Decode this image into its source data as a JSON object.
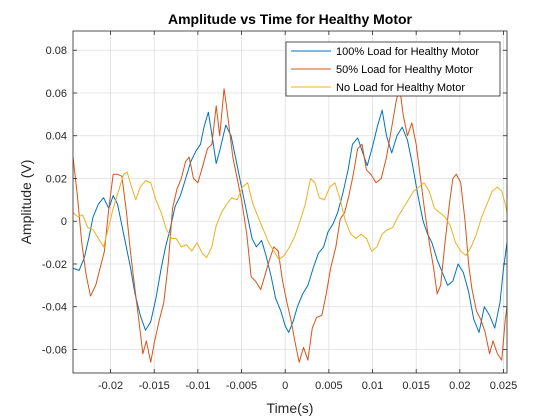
{
  "chart_data": {
    "type": "line",
    "title": "Amplitude vs Time for Healthy Motor",
    "xlabel": "Time(s)",
    "ylabel": "Amplitude (V)",
    "xlim": [
      -0.0243,
      0.0254
    ],
    "ylim": [
      -0.071,
      0.089
    ],
    "xticks": [
      -0.02,
      -0.015,
      -0.01,
      -0.005,
      0,
      0.005,
      0.01,
      0.015,
      0.02,
      0.025
    ],
    "xtick_labels": [
      "-0.02",
      "-0.015",
      "-0.01",
      "-0.005",
      "0",
      "0.005",
      "0.01",
      "0.015",
      "0.02",
      "0.025"
    ],
    "yticks": [
      -0.06,
      -0.04,
      -0.02,
      0,
      0.02,
      0.04,
      0.06,
      0.08
    ],
    "ytick_labels": [
      "-0.06",
      "-0.04",
      "-0.02",
      "0",
      "0.02",
      "0.04",
      "0.06",
      "0.08"
    ],
    "grid": true,
    "legend_position": "top-right",
    "series": [
      {
        "name": "100% Load for Healthy Motor",
        "color": "#0072BD",
        "points": [
          [
            -0.0243,
            -0.022
          ],
          [
            -0.0236,
            -0.023
          ],
          [
            -0.023,
            -0.017
          ],
          [
            -0.0225,
            -0.008
          ],
          [
            -0.022,
            0.002
          ],
          [
            -0.0214,
            0.008
          ],
          [
            -0.0208,
            0.011
          ],
          [
            -0.0202,
            0.006
          ],
          [
            -0.0197,
            0.012
          ],
          [
            -0.0192,
            0.008
          ],
          [
            -0.0186,
            -0.004
          ],
          [
            -0.0182,
            -0.012
          ],
          [
            -0.0177,
            -0.022
          ],
          [
            -0.0172,
            -0.034
          ],
          [
            -0.0166,
            -0.044
          ],
          [
            -0.016,
            -0.051
          ],
          [
            -0.0154,
            -0.047
          ],
          [
            -0.0148,
            -0.036
          ],
          [
            -0.0142,
            -0.022
          ],
          [
            -0.0137,
            -0.012
          ],
          [
            -0.0132,
            -0.004
          ],
          [
            -0.0126,
            0.007
          ],
          [
            -0.012,
            0.012
          ],
          [
            -0.0114,
            0.02
          ],
          [
            -0.0108,
            0.028
          ],
          [
            -0.0102,
            0.033
          ],
          [
            -0.0097,
            0.036
          ],
          [
            -0.0093,
            0.044
          ],
          [
            -0.0088,
            0.051
          ],
          [
            -0.0083,
            0.038
          ],
          [
            -0.0079,
            0.027
          ],
          [
            -0.0075,
            0.033
          ],
          [
            -0.0068,
            0.045
          ],
          [
            -0.0062,
            0.04
          ],
          [
            -0.0056,
            0.028
          ],
          [
            -0.005,
            0.016
          ],
          [
            -0.0044,
            0.004
          ],
          [
            -0.0038,
            -0.008
          ],
          [
            -0.0033,
            -0.012
          ],
          [
            -0.0027,
            -0.009
          ],
          [
            -0.0022,
            -0.016
          ],
          [
            -0.0016,
            -0.026
          ],
          [
            -0.0011,
            -0.036
          ],
          [
            -0.0005,
            -0.042
          ],
          [
            0.0,
            -0.049
          ],
          [
            0.0004,
            -0.052
          ],
          [
            0.0009,
            -0.047
          ],
          [
            0.0014,
            -0.04
          ],
          [
            0.002,
            -0.034
          ],
          [
            0.0026,
            -0.03
          ],
          [
            0.0032,
            -0.022
          ],
          [
            0.0038,
            -0.015
          ],
          [
            0.0044,
            -0.012
          ],
          [
            0.0049,
            -0.005
          ],
          [
            0.0055,
            -0.001
          ],
          [
            0.006,
            0.004
          ],
          [
            0.0066,
            0.013
          ],
          [
            0.0072,
            0.024
          ],
          [
            0.0077,
            0.036
          ],
          [
            0.0083,
            0.039
          ],
          [
            0.0088,
            0.033
          ],
          [
            0.0094,
            0.026
          ],
          [
            0.01,
            0.035
          ],
          [
            0.0106,
            0.045
          ],
          [
            0.0111,
            0.052
          ],
          [
            0.0116,
            0.04
          ],
          [
            0.0122,
            0.032
          ],
          [
            0.0128,
            0.04
          ],
          [
            0.0134,
            0.044
          ],
          [
            0.014,
            0.038
          ],
          [
            0.0146,
            0.026
          ],
          [
            0.0152,
            0.012
          ],
          [
            0.0158,
            0.0
          ],
          [
            0.0163,
            -0.006
          ],
          [
            0.0168,
            -0.01
          ],
          [
            0.0174,
            -0.018
          ],
          [
            0.018,
            -0.024
          ],
          [
            0.0186,
            -0.03
          ],
          [
            0.0192,
            -0.028
          ],
          [
            0.0198,
            -0.02
          ],
          [
            0.0204,
            -0.024
          ],
          [
            0.021,
            -0.033
          ],
          [
            0.0216,
            -0.046
          ],
          [
            0.0222,
            -0.052
          ],
          [
            0.0228,
            -0.04
          ],
          [
            0.0234,
            -0.044
          ],
          [
            0.024,
            -0.05
          ],
          [
            0.0246,
            -0.038
          ],
          [
            0.025,
            -0.022
          ],
          [
            0.0254,
            -0.01
          ]
        ]
      },
      {
        "name": "50% Load for Healthy Motor",
        "color": "#D95319",
        "points": [
          [
            -0.0243,
            0.03
          ],
          [
            -0.0238,
            0.012
          ],
          [
            -0.0233,
            -0.01
          ],
          [
            -0.0228,
            -0.025
          ],
          [
            -0.0223,
            -0.035
          ],
          [
            -0.0217,
            -0.03
          ],
          [
            -0.0212,
            -0.022
          ],
          [
            -0.0207,
            -0.014
          ],
          [
            -0.0202,
            0.006
          ],
          [
            -0.0197,
            0.022
          ],
          [
            -0.0192,
            0.022
          ],
          [
            -0.0187,
            0.021
          ],
          [
            -0.0182,
            0.005
          ],
          [
            -0.0177,
            -0.015
          ],
          [
            -0.0172,
            -0.032
          ],
          [
            -0.0168,
            -0.045
          ],
          [
            -0.0163,
            -0.062
          ],
          [
            -0.0159,
            -0.056
          ],
          [
            -0.0154,
            -0.066
          ],
          [
            -0.015,
            -0.057
          ],
          [
            -0.0144,
            -0.046
          ],
          [
            -0.0139,
            -0.038
          ],
          [
            -0.0134,
            -0.02
          ],
          [
            -0.0129,
            0.006
          ],
          [
            -0.0124,
            0.015
          ],
          [
            -0.0119,
            0.02
          ],
          [
            -0.0114,
            0.028
          ],
          [
            -0.011,
            0.03
          ],
          [
            -0.0105,
            0.02
          ],
          [
            -0.01,
            0.018
          ],
          [
            -0.0095,
            0.025
          ],
          [
            -0.0089,
            0.034
          ],
          [
            -0.0084,
            0.036
          ],
          [
            -0.0079,
            0.054
          ],
          [
            -0.0075,
            0.04
          ],
          [
            -0.007,
            0.062
          ],
          [
            -0.0066,
            0.05
          ],
          [
            -0.006,
            0.03
          ],
          [
            -0.0055,
            0.02
          ],
          [
            -0.005,
            0.01
          ],
          [
            -0.0044,
            -0.006
          ],
          [
            -0.0039,
            -0.026
          ],
          [
            -0.0034,
            -0.028
          ],
          [
            -0.0028,
            -0.032
          ],
          [
            -0.0023,
            -0.025
          ],
          [
            -0.0018,
            -0.018
          ],
          [
            -0.0013,
            -0.012
          ],
          [
            -0.0008,
            -0.014
          ],
          [
            -0.0003,
            -0.028
          ],
          [
            0.0002,
            -0.038
          ],
          [
            0.0007,
            -0.047
          ],
          [
            0.0011,
            -0.056
          ],
          [
            0.0016,
            -0.066
          ],
          [
            0.0021,
            -0.059
          ],
          [
            0.0026,
            -0.065
          ],
          [
            0.0031,
            -0.05
          ],
          [
            0.0036,
            -0.045
          ],
          [
            0.0042,
            -0.044
          ],
          [
            0.0047,
            -0.034
          ],
          [
            0.0052,
            -0.022
          ],
          [
            0.0058,
            -0.012
          ],
          [
            0.0063,
            0.001
          ],
          [
            0.0068,
            0.004
          ],
          [
            0.0073,
            0.012
          ],
          [
            0.0078,
            0.022
          ],
          [
            0.0083,
            0.034
          ],
          [
            0.0088,
            0.036
          ],
          [
            0.0093,
            0.024
          ],
          [
            0.0098,
            0.022
          ],
          [
            0.0104,
            0.018
          ],
          [
            0.011,
            0.02
          ],
          [
            0.0116,
            0.03
          ],
          [
            0.0122,
            0.044
          ],
          [
            0.0127,
            0.056
          ],
          [
            0.0131,
            0.063
          ],
          [
            0.0135,
            0.05
          ],
          [
            0.014,
            0.04
          ],
          [
            0.0145,
            0.046
          ],
          [
            0.015,
            0.036
          ],
          [
            0.0155,
            0.02
          ],
          [
            0.016,
            0.004
          ],
          [
            0.0165,
            -0.01
          ],
          [
            0.017,
            -0.022
          ],
          [
            0.0174,
            -0.034
          ],
          [
            0.0178,
            -0.03
          ],
          [
            0.0183,
            -0.01
          ],
          [
            0.0188,
            0.008
          ],
          [
            0.0192,
            0.02
          ],
          [
            0.0196,
            0.022
          ],
          [
            0.0201,
            0.018
          ],
          [
            0.0206,
            0.0
          ],
          [
            0.021,
            -0.02
          ],
          [
            0.0214,
            -0.032
          ],
          [
            0.0219,
            -0.042
          ],
          [
            0.0224,
            -0.046
          ],
          [
            0.0229,
            -0.052
          ],
          [
            0.0234,
            -0.062
          ],
          [
            0.0238,
            -0.056
          ],
          [
            0.0243,
            -0.062
          ],
          [
            0.0248,
            -0.065
          ],
          [
            0.0252,
            -0.046
          ],
          [
            0.0254,
            -0.04
          ]
        ]
      },
      {
        "name": "No Load for Healthy Motor",
        "color": "#EDB120",
        "points": [
          [
            -0.0243,
            0.004
          ],
          [
            -0.0237,
            0.002
          ],
          [
            -0.0232,
            0.003
          ],
          [
            -0.0226,
            -0.003
          ],
          [
            -0.022,
            -0.004
          ],
          [
            -0.0214,
            -0.008
          ],
          [
            -0.0208,
            -0.012
          ],
          [
            -0.0203,
            -0.004
          ],
          [
            -0.0197,
            0.006
          ],
          [
            -0.0191,
            0.014
          ],
          [
            -0.0185,
            0.022
          ],
          [
            -0.0181,
            0.023
          ],
          [
            -0.0176,
            0.016
          ],
          [
            -0.0171,
            0.01
          ],
          [
            -0.0166,
            0.016
          ],
          [
            -0.016,
            0.019
          ],
          [
            -0.0154,
            0.018
          ],
          [
            -0.0148,
            0.01
          ],
          [
            -0.0142,
            0.004
          ],
          [
            -0.0136,
            -0.004
          ],
          [
            -0.013,
            -0.008
          ],
          [
            -0.0125,
            -0.008
          ],
          [
            -0.0119,
            -0.012
          ],
          [
            -0.0113,
            -0.011
          ],
          [
            -0.0107,
            -0.014
          ],
          [
            -0.0101,
            -0.01
          ],
          [
            -0.0095,
            -0.015
          ],
          [
            -0.009,
            -0.017
          ],
          [
            -0.0084,
            -0.012
          ],
          [
            -0.0079,
            -0.002
          ],
          [
            -0.0073,
            0.004
          ],
          [
            -0.0067,
            0.008
          ],
          [
            -0.0061,
            0.011
          ],
          [
            -0.0055,
            0.01
          ],
          [
            -0.0049,
            0.016
          ],
          [
            -0.0043,
            0.018
          ],
          [
            -0.0037,
            0.008
          ],
          [
            -0.0031,
            0.002
          ],
          [
            -0.0025,
            -0.004
          ],
          [
            -0.0019,
            -0.01
          ],
          [
            -0.0013,
            -0.014
          ],
          [
            -0.0007,
            -0.018
          ],
          [
            -0.0001,
            -0.016
          ],
          [
            0.0005,
            -0.012
          ],
          [
            0.0011,
            -0.007
          ],
          [
            0.0017,
            0.0
          ],
          [
            0.0023,
            0.008
          ],
          [
            0.0029,
            0.02
          ],
          [
            0.0034,
            0.018
          ],
          [
            0.0039,
            0.011
          ],
          [
            0.0045,
            0.01
          ],
          [
            0.0051,
            0.016
          ],
          [
            0.0057,
            0.018
          ],
          [
            0.0063,
            0.01
          ],
          [
            0.0069,
            0.0
          ],
          [
            0.0075,
            -0.006
          ],
          [
            0.0081,
            -0.008
          ],
          [
            0.0087,
            -0.006
          ],
          [
            0.0093,
            -0.008
          ],
          [
            0.0099,
            -0.014
          ],
          [
            0.0105,
            -0.012
          ],
          [
            0.0111,
            -0.006
          ],
          [
            0.0117,
            -0.004
          ],
          [
            0.0123,
            -0.003
          ],
          [
            0.0129,
            0.002
          ],
          [
            0.0135,
            0.006
          ],
          [
            0.0141,
            0.01
          ],
          [
            0.0147,
            0.014
          ],
          [
            0.0153,
            0.016
          ],
          [
            0.0159,
            0.018
          ],
          [
            0.0165,
            0.014
          ],
          [
            0.0171,
            0.006
          ],
          [
            0.0177,
            0.004
          ],
          [
            0.0183,
            0.002
          ],
          [
            0.0189,
            -0.002
          ],
          [
            0.0195,
            -0.01
          ],
          [
            0.0201,
            -0.014
          ],
          [
            0.0207,
            -0.016
          ],
          [
            0.0213,
            -0.012
          ],
          [
            0.0219,
            -0.006
          ],
          [
            0.0225,
            0.002
          ],
          [
            0.0231,
            0.008
          ],
          [
            0.0237,
            0.014
          ],
          [
            0.0243,
            0.016
          ],
          [
            0.0248,
            0.014
          ],
          [
            0.0252,
            0.008
          ],
          [
            0.0254,
            0.004
          ]
        ]
      }
    ]
  }
}
